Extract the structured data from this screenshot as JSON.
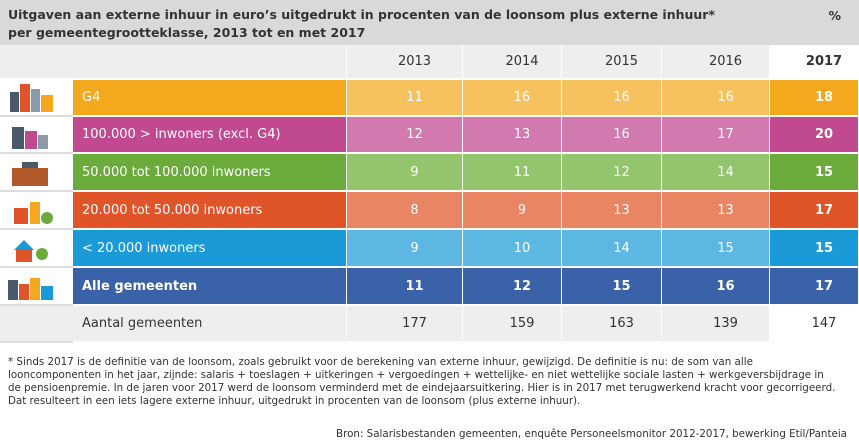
{
  "header": {
    "title_line1": "Uitgaven aan externe inhuur in euro’s uitgedrukt in procenten van de loonsom plus externe inhuur*",
    "title_line2": "per gemeentegrootteklasse, 2013 tot en met 2017",
    "unit": "%"
  },
  "table": {
    "columns": [
      "2013",
      "2014",
      "2015",
      "2016",
      "2017"
    ],
    "rows": [
      {
        "label": "G4",
        "values": [
          "11",
          "16",
          "16",
          "16",
          "18"
        ]
      },
      {
        "label": "100.000 > inwoners (excl. G4)",
        "values": [
          "12",
          "13",
          "16",
          "17",
          "20"
        ]
      },
      {
        "label": "50.000 tot 100.000 inwoners",
        "values": [
          "9",
          "11",
          "12",
          "14",
          "15"
        ]
      },
      {
        "label": "20.000 tot 50.000 inwoners",
        "values": [
          "8",
          "9",
          "13",
          "13",
          "17"
        ]
      },
      {
        "label": "< 20.000 inwoners",
        "values": [
          "9",
          "10",
          "14",
          "15",
          "15"
        ]
      },
      {
        "label": "Alle gemeenten",
        "values": [
          "11",
          "12",
          "15",
          "16",
          "17"
        ]
      },
      {
        "label": "Aantal gemeenten",
        "values": [
          "177",
          "159",
          "163",
          "139",
          "147"
        ]
      }
    ]
  },
  "footnote": "* Sinds 2017 is de definitie van de loonsom, zoals gebruikt voor de berekening van externe inhuur, gewijzigd. De definitie is nu: de som van alle looncomponenten in het jaar, zijnde: salaris + toeslagen + uitkeringen + vergoedingen + wettelijke- en niet wettelijke sociale lasten + werkgeversbijdrage in de pensioenpremie. In de jaren voor 2017 werd de loonsom verminderd met de eindejaarsuitkering. Hier is in 2017 met terugwerkend kracht voor gecorrigeerd. Dat resulteert in een iets lagere externe inhuur, uitgedrukt in procenten van de loonsom (plus externe inhuur).",
  "source": "Bron: Salarisbestanden gemeenten, enquête Personeelsmonitor 2012-2017, bewerking Etil/Panteia"
}
